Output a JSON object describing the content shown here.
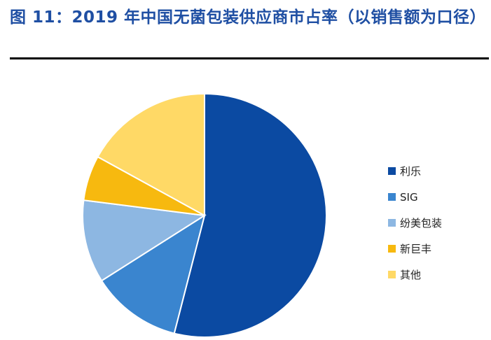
{
  "figure": {
    "title": "图 11：2019 年中国无菌包装供应商市占率（以销售额为口径）"
  },
  "chart_data": {
    "type": "pie",
    "title": "",
    "unit": "%",
    "series": [
      {
        "name": "利乐",
        "value": 54,
        "color": "#0b4aa2"
      },
      {
        "name": "SIG",
        "value": 12,
        "color": "#3a85cf"
      },
      {
        "name": "纷美包装",
        "value": 11,
        "color": "#8db7e2"
      },
      {
        "name": "新巨丰",
        "value": 6,
        "color": "#f7b90f"
      },
      {
        "name": "其他",
        "value": 17,
        "color": "#ffd966"
      }
    ],
    "start_angle_deg": 0,
    "direction": "clockwise",
    "legend_position": "right"
  }
}
